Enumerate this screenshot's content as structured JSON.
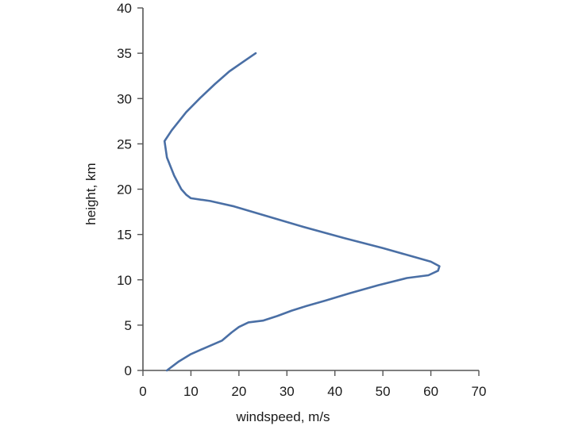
{
  "chart_data": {
    "type": "line",
    "title": "",
    "xlabel": "windspeed, m/s",
    "ylabel": "height, km",
    "xlim": [
      0,
      70
    ],
    "ylim": [
      0,
      40
    ],
    "xticks": [
      0,
      10,
      20,
      30,
      40,
      50,
      60,
      70
    ],
    "yticks": [
      0,
      5,
      10,
      15,
      20,
      25,
      30,
      35,
      40
    ],
    "grid": false,
    "legend": "none",
    "line_color": "#4a6fa5",
    "series": [
      {
        "x": [
          5,
          7.5,
          10,
          13,
          16.5,
          18.5,
          20,
          22,
          25,
          28,
          31,
          34,
          38,
          43,
          49,
          55,
          59.5,
          61.5,
          61.8,
          60,
          56,
          50,
          42,
          33,
          26,
          19,
          14,
          10,
          9,
          8,
          6.5,
          5,
          4.5,
          6,
          9,
          12,
          15,
          18,
          21,
          23.5
        ],
        "y": [
          0,
          1,
          1.8,
          2.5,
          3.3,
          4.2,
          4.8,
          5.3,
          5.5,
          6.0,
          6.6,
          7.1,
          7.7,
          8.5,
          9.4,
          10.2,
          10.5,
          11.0,
          11.5,
          12.0,
          12.6,
          13.5,
          14.6,
          15.9,
          17.0,
          18.1,
          18.7,
          19.0,
          19.4,
          20.0,
          21.5,
          23.5,
          25.3,
          26.5,
          28.5,
          30.1,
          31.6,
          33.0,
          34.1,
          35
        ]
      }
    ]
  }
}
